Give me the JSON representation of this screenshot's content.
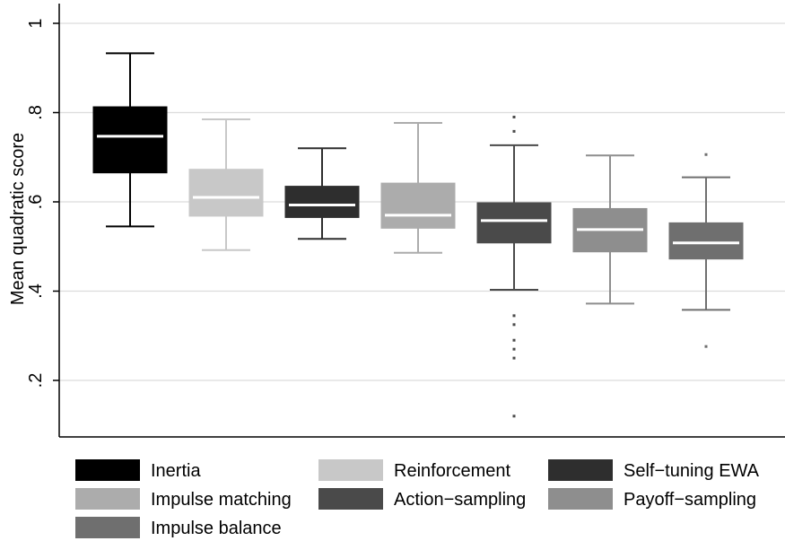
{
  "chart_data": {
    "type": "box",
    "title": "",
    "xlabel": "",
    "ylabel": "Mean quadratic score",
    "ylim": [
      0.08,
      1.05
    ],
    "yticks": [
      0.2,
      0.4,
      0.6,
      0.8,
      1
    ],
    "ytick_labels": [
      ".2",
      ".4",
      ".6",
      ".8",
      "1"
    ],
    "grid": true,
    "legend_position": "bottom",
    "series": [
      {
        "name": "Inertia",
        "color": "#000000",
        "median_color": "#ffffff",
        "whisker_low": 0.545,
        "q1": 0.665,
        "median": 0.747,
        "q3": 0.813,
        "whisker_high": 0.933,
        "outliers": []
      },
      {
        "name": "Reinforcement",
        "color": "#c8c8c8",
        "median_color": "#ffffff",
        "whisker_low": 0.492,
        "q1": 0.568,
        "median": 0.61,
        "q3": 0.673,
        "whisker_high": 0.785,
        "outliers": []
      },
      {
        "name": "Self−tuning EWA",
        "color": "#2e2e2e",
        "median_color": "#ffffff",
        "whisker_low": 0.517,
        "q1": 0.565,
        "median": 0.593,
        "q3": 0.635,
        "whisker_high": 0.72,
        "outliers": []
      },
      {
        "name": "Impulse matching",
        "color": "#acacac",
        "median_color": "#ffffff",
        "whisker_low": 0.486,
        "q1": 0.541,
        "median": 0.57,
        "q3": 0.642,
        "whisker_high": 0.777,
        "outliers": []
      },
      {
        "name": "Action−sampling",
        "color": "#4a4a4a",
        "median_color": "#ffffff",
        "whisker_low": 0.403,
        "q1": 0.508,
        "median": 0.558,
        "q3": 0.598,
        "whisker_high": 0.727,
        "outliers": [
          0.79,
          0.758,
          0.345,
          0.325,
          0.29,
          0.27,
          0.25,
          0.12
        ]
      },
      {
        "name": "Payoff−sampling",
        "color": "#8e8e8e",
        "median_color": "#ffffff",
        "whisker_low": 0.372,
        "q1": 0.488,
        "median": 0.538,
        "q3": 0.585,
        "whisker_high": 0.704,
        "outliers": []
      },
      {
        "name": "Impulse  balance",
        "color": "#6f6f6f",
        "median_color": "#ffffff",
        "whisker_low": 0.358,
        "q1": 0.472,
        "median": 0.508,
        "q3": 0.553,
        "whisker_high": 0.655,
        "outliers": [
          0.706,
          0.276
        ]
      }
    ]
  }
}
